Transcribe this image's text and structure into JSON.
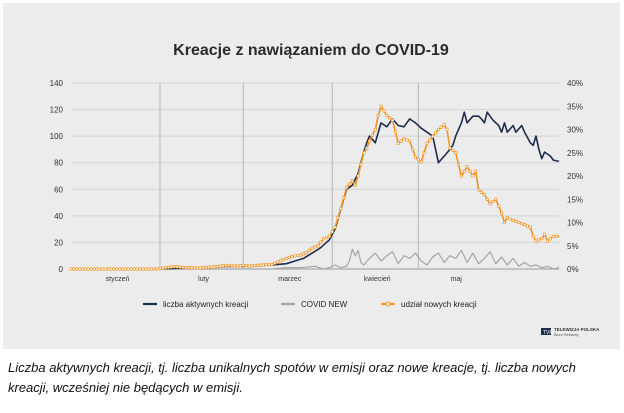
{
  "chart_data": {
    "type": "line",
    "title": "Kreacje z nawiązaniem do COVID-19",
    "x_categories": [
      "styczeń",
      "luty",
      "marzec",
      "kwiecień",
      "maj"
    ],
    "x_range_days": [
      0,
      146
    ],
    "month_boundaries_days": [
      31,
      60,
      91,
      121
    ],
    "y_left": {
      "ticks": [
        0,
        20,
        40,
        60,
        80,
        100,
        120,
        140
      ],
      "range": [
        0,
        140
      ]
    },
    "y_right": {
      "ticks": [
        "0%",
        "5%",
        "10%",
        "15%",
        "20%",
        "25%",
        "30%",
        "35%",
        "40%"
      ],
      "range": [
        0,
        40
      ]
    },
    "series": [
      {
        "name": "liczba aktywnych kreacji",
        "axis": "left",
        "color": "#1f2d4d",
        "points": [
          [
            0,
            0
          ],
          [
            30,
            0
          ],
          [
            45,
            1
          ],
          [
            55,
            2
          ],
          [
            60,
            2
          ],
          [
            70,
            3
          ],
          [
            75,
            4
          ],
          [
            78,
            6
          ],
          [
            81,
            8
          ],
          [
            84,
            12
          ],
          [
            87,
            16
          ],
          [
            90,
            22
          ],
          [
            92,
            30
          ],
          [
            94,
            45
          ],
          [
            96,
            60
          ],
          [
            98,
            63
          ],
          [
            100,
            72
          ],
          [
            102,
            88
          ],
          [
            103,
            95
          ],
          [
            104,
            100
          ],
          [
            106,
            95
          ],
          [
            108,
            110
          ],
          [
            110,
            107
          ],
          [
            112,
            113
          ],
          [
            114,
            108
          ],
          [
            116,
            107
          ],
          [
            118,
            113
          ],
          [
            120,
            110
          ],
          [
            122,
            106
          ],
          [
            124,
            103
          ],
          [
            126,
            100
          ],
          [
            127,
            90
          ],
          [
            128,
            80
          ],
          [
            130,
            85
          ],
          [
            132,
            90
          ],
          [
            133,
            93
          ],
          [
            134,
            100
          ],
          [
            136,
            110
          ],
          [
            137,
            118
          ],
          [
            138,
            110
          ],
          [
            140,
            115
          ],
          [
            142,
            115
          ],
          [
            143,
            113
          ],
          [
            144,
            110
          ],
          [
            145,
            118
          ],
          [
            147,
            112
          ],
          [
            149,
            108
          ],
          [
            150,
            103
          ],
          [
            151,
            110
          ],
          [
            152,
            103
          ],
          [
            154,
            108
          ],
          [
            155,
            103
          ],
          [
            157,
            108
          ],
          [
            158,
            103
          ],
          [
            160,
            95
          ],
          [
            161,
            93
          ],
          [
            162,
            100
          ],
          [
            163,
            90
          ],
          [
            164,
            83
          ],
          [
            165,
            88
          ],
          [
            167,
            85
          ],
          [
            168,
            82
          ],
          [
            170,
            81
          ]
        ]
      },
      {
        "name": "COVID NEW",
        "axis": "left",
        "color": "#a5a5a5",
        "points": [
          [
            0,
            0
          ],
          [
            70,
            0
          ],
          [
            75,
            1
          ],
          [
            80,
            1
          ],
          [
            85,
            2
          ],
          [
            88,
            0
          ],
          [
            90,
            1
          ],
          [
            92,
            3
          ],
          [
            94,
            1
          ],
          [
            96,
            2
          ],
          [
            97,
            6
          ],
          [
            98,
            15
          ],
          [
            99,
            10
          ],
          [
            100,
            14
          ],
          [
            101,
            5
          ],
          [
            102,
            3
          ],
          [
            104,
            8
          ],
          [
            106,
            12
          ],
          [
            108,
            6
          ],
          [
            110,
            10
          ],
          [
            112,
            13
          ],
          [
            114,
            4
          ],
          [
            116,
            10
          ],
          [
            118,
            8
          ],
          [
            120,
            12
          ],
          [
            122,
            6
          ],
          [
            124,
            3
          ],
          [
            126,
            9
          ],
          [
            128,
            12
          ],
          [
            130,
            5
          ],
          [
            132,
            10
          ],
          [
            134,
            8
          ],
          [
            136,
            14
          ],
          [
            138,
            5
          ],
          [
            140,
            12
          ],
          [
            142,
            4
          ],
          [
            144,
            8
          ],
          [
            146,
            13
          ],
          [
            148,
            4
          ],
          [
            150,
            9
          ],
          [
            152,
            3
          ],
          [
            154,
            8
          ],
          [
            156,
            2
          ],
          [
            158,
            5
          ],
          [
            160,
            2
          ],
          [
            162,
            3
          ],
          [
            164,
            1
          ],
          [
            166,
            2
          ],
          [
            168,
            0
          ],
          [
            170,
            1
          ]
        ]
      },
      {
        "name": "udział nowych kreacji",
        "axis": "right",
        "color": "#f39322",
        "points": [
          [
            0,
            0
          ],
          [
            30,
            0
          ],
          [
            33,
            0.3
          ],
          [
            36,
            0.5
          ],
          [
            40,
            0.3
          ],
          [
            45,
            0.2
          ],
          [
            50,
            0.5
          ],
          [
            55,
            0.8
          ],
          [
            58,
            0.6
          ],
          [
            60,
            0.8
          ],
          [
            62,
            0.6
          ],
          [
            65,
            0.8
          ],
          [
            70,
            1.0
          ],
          [
            72,
            1.5
          ],
          [
            74,
            2
          ],
          [
            76,
            2.5
          ],
          [
            78,
            2.8
          ],
          [
            80,
            3
          ],
          [
            82,
            3.5
          ],
          [
            84,
            4.5
          ],
          [
            86,
            5
          ],
          [
            88,
            6.5
          ],
          [
            90,
            7
          ],
          [
            92,
            9
          ],
          [
            94,
            13
          ],
          [
            96,
            17.5
          ],
          [
            98,
            19
          ],
          [
            99,
            18
          ],
          [
            100,
            20
          ],
          [
            102,
            25
          ],
          [
            103,
            26
          ],
          [
            104,
            27.5
          ],
          [
            106,
            30
          ],
          [
            107,
            33
          ],
          [
            108,
            35
          ],
          [
            110,
            33
          ],
          [
            112,
            32
          ],
          [
            114,
            27
          ],
          [
            116,
            28
          ],
          [
            118,
            27.5
          ],
          [
            120,
            24
          ],
          [
            122,
            23
          ],
          [
            124,
            27
          ],
          [
            126,
            28.5
          ],
          [
            128,
            30
          ],
          [
            130,
            31
          ],
          [
            131,
            30
          ],
          [
            132,
            26
          ],
          [
            134,
            25
          ],
          [
            136,
            20
          ],
          [
            138,
            22
          ],
          [
            140,
            20
          ],
          [
            141,
            21
          ],
          [
            142,
            17
          ],
          [
            144,
            16
          ],
          [
            146,
            14
          ],
          [
            148,
            15
          ],
          [
            150,
            12
          ],
          [
            151,
            10
          ],
          [
            152,
            11
          ],
          [
            154,
            10.5
          ],
          [
            156,
            10
          ],
          [
            158,
            9.5
          ],
          [
            160,
            9
          ],
          [
            161,
            7
          ],
          [
            162,
            6
          ],
          [
            164,
            6.5
          ],
          [
            165,
            7.5
          ],
          [
            166,
            6
          ],
          [
            168,
            7
          ],
          [
            170,
            7
          ]
        ]
      }
    ],
    "legend": [
      "liczba aktywnych kreacji",
      "COVID NEW",
      "udział nowych kreacji"
    ],
    "legend_placement": "bottom-center"
  },
  "logo": {
    "name": "TELEWIZJA POLSKA",
    "sub": "Biuro Reklamy",
    "tag": "TVP"
  },
  "caption": "Liczba aktywnych kreacji, tj. liczba unikalnych spotów w emisji oraz nowe kreacje, tj. liczba nowych kreacji, wcześniej nie będących w emisji."
}
